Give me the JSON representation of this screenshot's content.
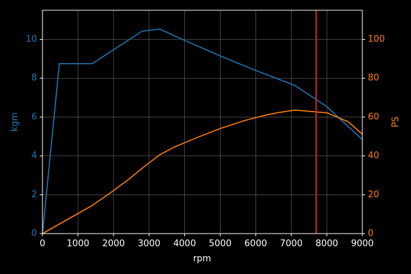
{
  "chart_data": {
    "type": "line",
    "xlabel": "rpm",
    "ylabel": "kgm",
    "y2label": "PS",
    "xlim": [
      0,
      9000
    ],
    "xticks": [
      0,
      1000,
      2000,
      3000,
      4000,
      5000,
      6000,
      7000,
      8000,
      9000
    ],
    "ylim": [
      0,
      11.5
    ],
    "yticks": [
      0,
      2,
      4,
      6,
      8,
      10
    ],
    "y2lim": [
      0,
      115
    ],
    "y2ticks": [
      0,
      20,
      40,
      60,
      80,
      100
    ],
    "grid": true,
    "series": [
      {
        "name": "kgm",
        "color": "#1f77b4",
        "axis": "y",
        "x": [
          0,
          475,
          1400,
          2800,
          3300,
          4000,
          5000,
          6000,
          6600,
          7100,
          8000,
          9000
        ],
        "values": [
          0,
          8.75,
          8.75,
          10.42,
          10.53,
          9.95,
          9.15,
          8.4,
          7.98,
          7.63,
          6.54,
          4.84
        ]
      },
      {
        "name": "PS",
        "color": "#ff7f0e",
        "axis": "y2",
        "x": [
          0,
          1400,
          1900,
          2400,
          2900,
          3300,
          3700,
          4300,
          5000,
          5700,
          6300,
          6600,
          7100,
          8000,
          8600,
          9000
        ],
        "values": [
          0,
          14.5,
          20.8,
          27.6,
          35,
          40.6,
          44.5,
          49.1,
          54.1,
          58.3,
          61.1,
          62.2,
          63.6,
          62.2,
          57.6,
          51.2
        ]
      }
    ],
    "vline": {
      "x": 7700,
      "color": "#d62728"
    }
  }
}
